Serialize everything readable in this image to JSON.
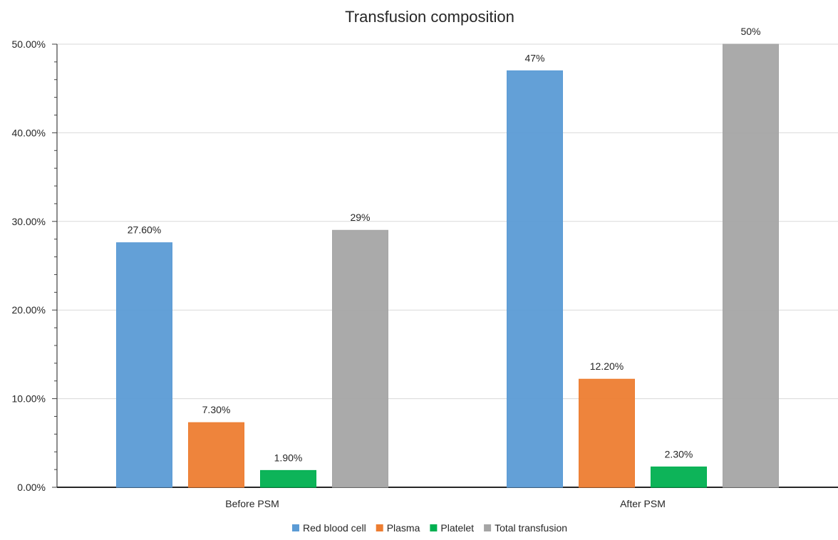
{
  "chart_data": {
    "type": "bar",
    "title": "Transfusion composition",
    "xlabel": "",
    "ylabel": "",
    "categories": [
      "Before PSM",
      "After PSM"
    ],
    "series": [
      {
        "name": "Red blood cell",
        "color": "#5B9BD5",
        "values": [
          27.6,
          47
        ],
        "labels": [
          "27.60%",
          "47%"
        ]
      },
      {
        "name": "Plasma",
        "color": "#ED7D31",
        "values": [
          7.3,
          12.2
        ],
        "labels": [
          "7.30%",
          "12.20%"
        ]
      },
      {
        "name": "Platelet",
        "color": "#00B050",
        "values": [
          1.9,
          2.3
        ],
        "labels": [
          "1.90%",
          "2.30%"
        ]
      },
      {
        "name": "Total transfusion",
        "color": "#A5A5A5",
        "values": [
          29,
          50
        ],
        "labels": [
          "29%",
          "50%"
        ]
      }
    ],
    "ylim": [
      0,
      50
    ],
    "yticks": [
      0,
      10,
      20,
      30,
      40,
      50
    ],
    "ytick_labels": [
      "0.00%",
      "10.00%",
      "20.00%",
      "30.00%",
      "40.00%",
      "50.00%"
    ],
    "grid": true,
    "legend_position": "bottom"
  }
}
